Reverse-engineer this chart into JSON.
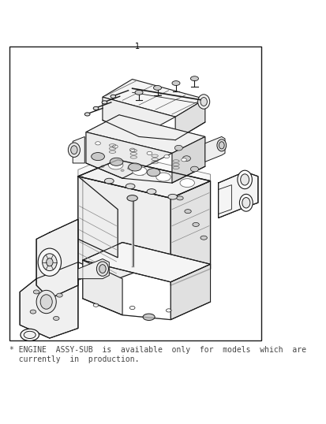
{
  "bg_color": "#ffffff",
  "border_color": "#1a1a1a",
  "border_linewidth": 1.0,
  "part_number": "1",
  "footnote_line1": "* ENGINE  ASSY-SUB  is  available  only  for  models  which  are",
  "footnote_line2": "  currently  in  production.",
  "footnote_fontsize": 7.0,
  "footnote_color": "#444444",
  "line_color": "#1a1a1a",
  "line_color2": "#333333"
}
